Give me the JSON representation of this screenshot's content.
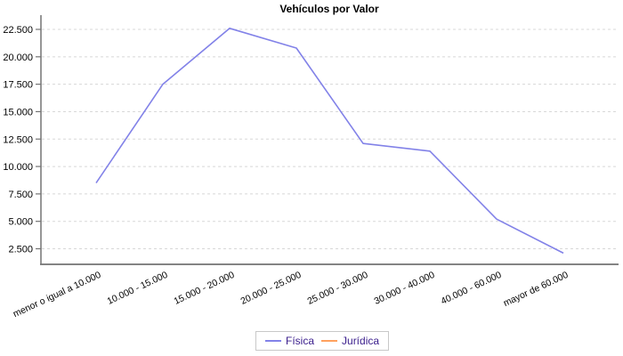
{
  "title": "Vehículos por Valor",
  "legend": {
    "items": [
      {
        "label": "Física",
        "color": "#8282e8"
      },
      {
        "label": "Jurídica",
        "color": "#ffa15e"
      }
    ]
  },
  "chart_data": {
    "type": "line",
    "title": "Vehículos por Valor",
    "categories": [
      "menor o igual a 10.000",
      "10.000 - 15.000",
      "15.000 - 20.000",
      "20.000 - 25.000",
      "25.000 - 30.000",
      "30.000 - 40.000",
      "40.000 - 60.000",
      "mayor de 60.000"
    ],
    "series": [
      {
        "name": "Física",
        "color": "#8282e8",
        "values": [
          8500,
          17500,
          22600,
          20800,
          12100,
          11400,
          5200,
          2100
        ]
      },
      {
        "name": "Jurídica",
        "color": "#ffa15e",
        "values": []
      }
    ],
    "y_axis": {
      "tick_values": [
        2500,
        5000,
        7500,
        10000,
        12500,
        15000,
        17500,
        20000,
        22500
      ],
      "tick_labels": [
        "2.500",
        "5.000",
        "7.500",
        "10.000",
        "12.500",
        "15.000",
        "17.500",
        "20.000",
        "22.500"
      ],
      "min": 1000,
      "max": 23800
    },
    "grid": "horizontal-dashed",
    "legend_position": "bottom",
    "colors": {
      "axis": "#737373",
      "gridline": "#d8d8d8",
      "tick_text": "#000000",
      "legend_text": "#3a1d8c"
    }
  }
}
